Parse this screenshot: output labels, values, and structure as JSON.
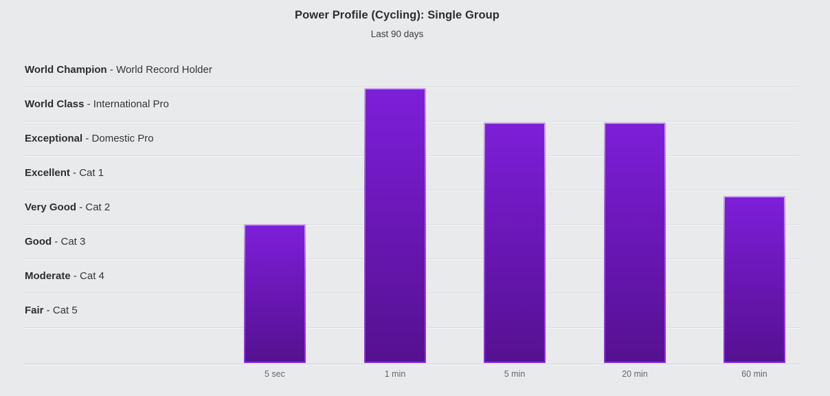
{
  "labels": {
    "separator": " - "
  },
  "colors": {
    "background": "#e9eaec",
    "gridline": "#dadbde",
    "gridline_highlight": "#f6f6f8",
    "bar_fill_top": "#7d1fd9",
    "bar_fill_bottom": "#551190",
    "bar_border_top": "#c6a4ea",
    "bar_border_bottom": "#8d2ce0",
    "title_text": "#2e2e30",
    "tick_text": "#65686b"
  },
  "chart_data": {
    "type": "bar",
    "title": "Power Profile (Cycling): Single Group",
    "subtitle": "Last 90 days",
    "categories": [
      "5 sec",
      "1 min",
      "5 min",
      "20 min",
      "60 min"
    ],
    "values": [
      4.04,
      8.0,
      7.0,
      7.0,
      4.86
    ],
    "value_unit": "category bands above the x-axis (1 band = 1 rating tier, 9 bands total to chart top)",
    "ylim": [
      0,
      9
    ],
    "grid": true,
    "legend": false,
    "y_bands": [
      {
        "tier": "World Champion",
        "desc": "World Record Holder"
      },
      {
        "tier": "World Class",
        "desc": "International Pro"
      },
      {
        "tier": "Exceptional",
        "desc": "Domestic Pro"
      },
      {
        "tier": "Excellent",
        "desc": "Cat 1"
      },
      {
        "tier": "Very Good",
        "desc": "Cat 2"
      },
      {
        "tier": "Good",
        "desc": "Cat 3"
      },
      {
        "tier": "Moderate",
        "desc": "Cat 4"
      },
      {
        "tier": "Fair",
        "desc": "Cat 5"
      }
    ],
    "series_notes": "Bar tops: 5 sec reaches top of Good band; 1 min reaches top of World Class band; 5 min and 20 min reach top of Exceptional band; 60 min reaches just below top of Very Good band"
  }
}
